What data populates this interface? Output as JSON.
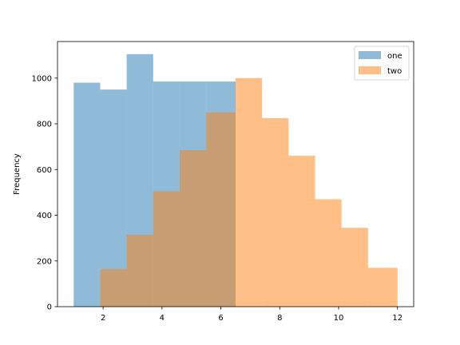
{
  "chart_data": {
    "type": "histogram",
    "title": "",
    "xlabel": "",
    "ylabel": "Frequency",
    "xlim": [
      0.45,
      12.55
    ],
    "ylim": [
      0,
      1160
    ],
    "xticks": [
      2,
      4,
      6,
      8,
      10,
      12
    ],
    "yticks": [
      0,
      200,
      400,
      600,
      800,
      1000
    ],
    "grid": false,
    "legend_position": "top-right",
    "series": [
      {
        "name": "one",
        "color": "#1f77b4",
        "opacity": 0.5,
        "bins": [
          {
            "x0": 1.0,
            "x1": 1.9,
            "count": 980
          },
          {
            "x0": 1.9,
            "x1": 2.8,
            "count": 950
          },
          {
            "x0": 2.8,
            "x1": 3.7,
            "count": 1105
          },
          {
            "x0": 3.7,
            "x1": 4.6,
            "count": 985
          },
          {
            "x0": 4.6,
            "x1": 5.5,
            "count": 985
          },
          {
            "x0": 5.5,
            "x1": 6.5,
            "count": 985
          }
        ]
      },
      {
        "name": "two",
        "color": "#ff7f0e",
        "opacity": 0.5,
        "bins": [
          {
            "x0": 1.9,
            "x1": 2.8,
            "count": 165
          },
          {
            "x0": 2.8,
            "x1": 3.7,
            "count": 315
          },
          {
            "x0": 3.7,
            "x1": 4.6,
            "count": 505
          },
          {
            "x0": 4.6,
            "x1": 5.5,
            "count": 685
          },
          {
            "x0": 5.5,
            "x1": 6.5,
            "count": 850
          },
          {
            "x0": 6.5,
            "x1": 7.4,
            "count": 1000
          },
          {
            "x0": 7.4,
            "x1": 8.3,
            "count": 825
          },
          {
            "x0": 8.3,
            "x1": 9.2,
            "count": 660
          },
          {
            "x0": 9.2,
            "x1": 10.1,
            "count": 470
          },
          {
            "x0": 10.1,
            "x1": 11.0,
            "count": 345
          },
          {
            "x0": 11.0,
            "x1": 12.0,
            "count": 170
          }
        ]
      }
    ]
  }
}
